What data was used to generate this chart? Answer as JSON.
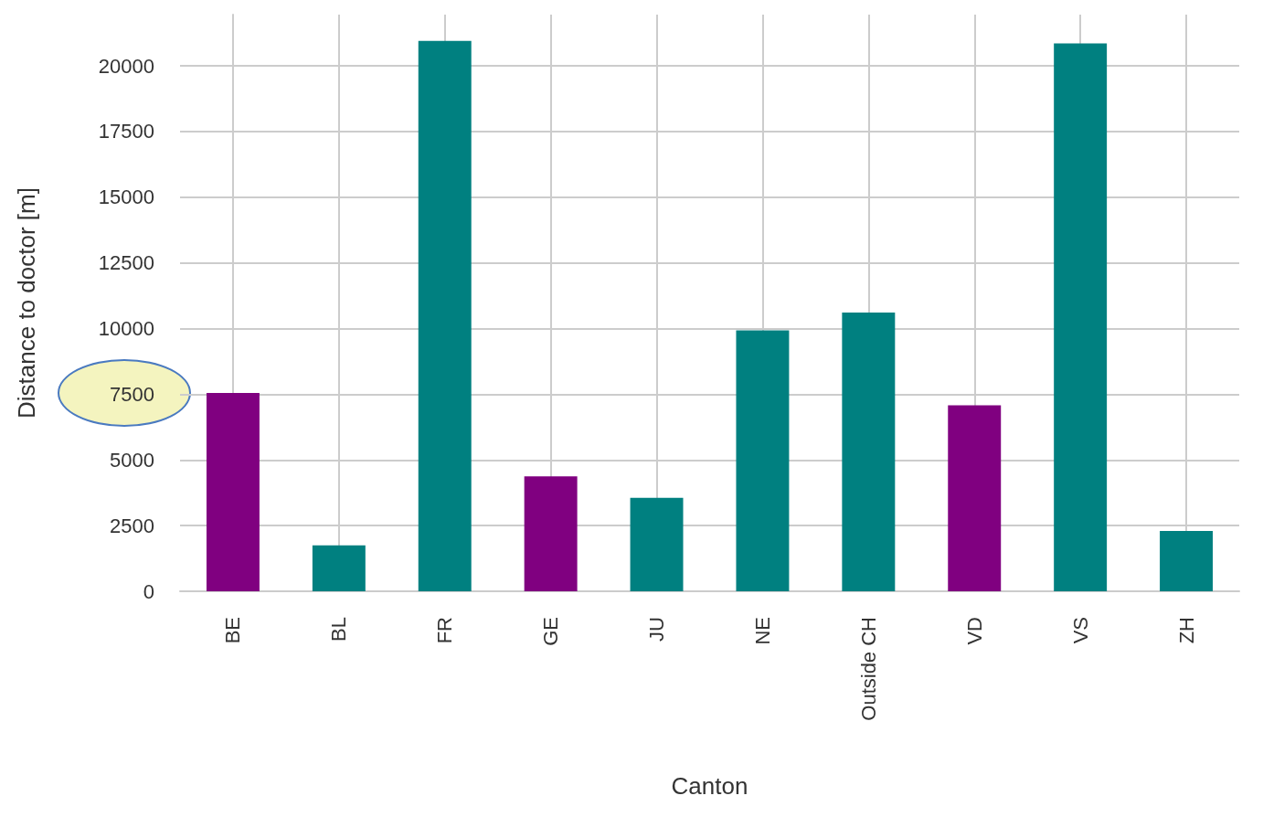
{
  "chart_data": {
    "type": "bar",
    "xlabel": "Canton",
    "ylabel": "Distance to doctor [m]",
    "categories": [
      "BE",
      "BL",
      "FR",
      "GE",
      "JU",
      "NE",
      "Outside CH",
      "VD",
      "VS",
      "ZH"
    ],
    "values": [
      7550,
      1750,
      20950,
      4370,
      3560,
      9930,
      10610,
      7080,
      20850,
      2300
    ],
    "colors": [
      "#800080",
      "#008080",
      "#008080",
      "#800080",
      "#008080",
      "#008080",
      "#008080",
      "#800080",
      "#008080",
      "#008080"
    ],
    "ylim": [
      0,
      21950
    ],
    "yticks": [
      0,
      2500,
      5000,
      7500,
      10000,
      12500,
      15000,
      17500,
      20000
    ],
    "grid": true
  }
}
